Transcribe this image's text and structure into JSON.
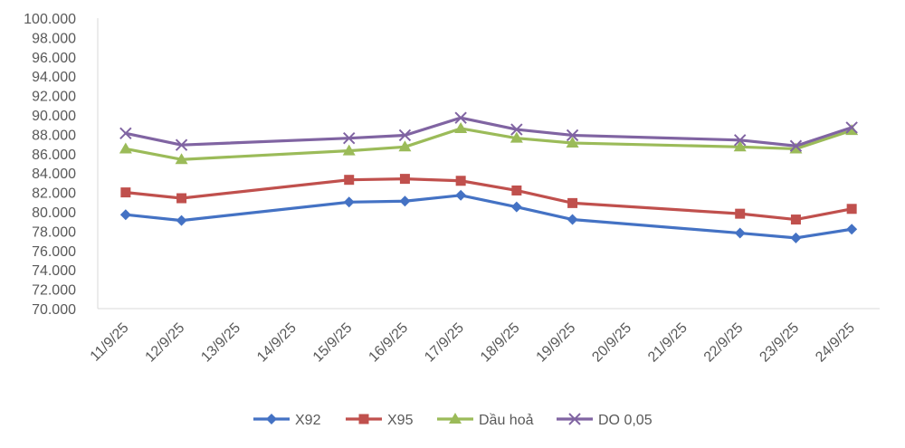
{
  "chart_data": {
    "type": "line",
    "title": "",
    "xlabel": "",
    "ylabel": "",
    "categories": [
      "11/9/25",
      "12/9/25",
      "13/9/25",
      "14/9/25",
      "15/9/25",
      "16/9/25",
      "17/9/25",
      "18/9/25",
      "19/9/25",
      "20/9/25",
      "21/9/25",
      "22/9/25",
      "23/9/25",
      "24/9/25"
    ],
    "ylim": [
      70000,
      100000
    ],
    "y_ticks": [
      "70.000",
      "72.000",
      "74.000",
      "76.000",
      "78.000",
      "80.000",
      "82.000",
      "84.000",
      "86.000",
      "88.000",
      "90.000",
      "92.000",
      "94.000",
      "96.000",
      "98.000",
      "100.000"
    ],
    "grid": false,
    "legend_position": "bottom",
    "series": [
      {
        "name": "X92",
        "color": "#4472C4",
        "marker": "diamond",
        "values": [
          79700,
          79100,
          null,
          null,
          81000,
          81100,
          81700,
          80500,
          79200,
          null,
          null,
          77800,
          77300,
          78200
        ]
      },
      {
        "name": "X95",
        "color": "#C0504D",
        "marker": "square",
        "values": [
          82000,
          81400,
          null,
          null,
          83300,
          83400,
          83200,
          82200,
          80900,
          null,
          null,
          79800,
          79200,
          80300
        ]
      },
      {
        "name": "Dầu hoả",
        "color": "#9BBB59",
        "marker": "triangle",
        "values": [
          86500,
          85400,
          null,
          null,
          86300,
          86700,
          88600,
          87600,
          87100,
          null,
          null,
          86700,
          86500,
          88400
        ]
      },
      {
        "name": "DO 0,05",
        "color": "#8064A2",
        "marker": "x",
        "values": [
          88100,
          86900,
          null,
          null,
          87600,
          87900,
          89700,
          88500,
          87900,
          null,
          null,
          87400,
          86800,
          88700
        ]
      }
    ]
  }
}
